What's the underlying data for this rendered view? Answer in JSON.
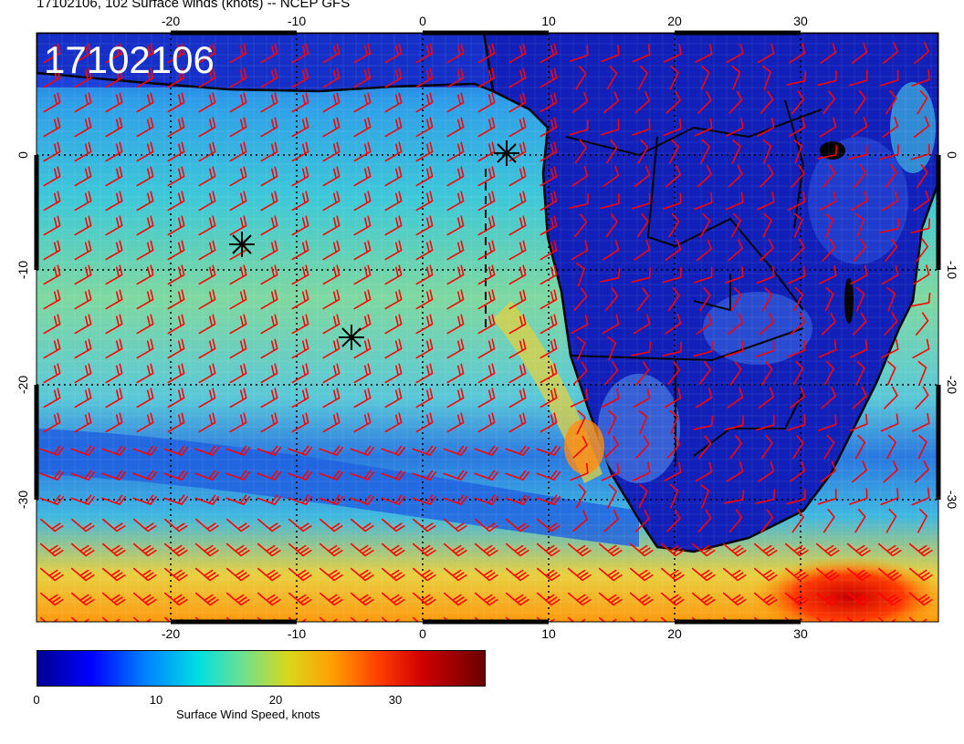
{
  "header": {
    "title": "17102106, 102 Surface winds (knots) -- NCEP GFS"
  },
  "map": {
    "timestamp_label": "17102106",
    "lon_ticks": [
      "-20",
      "-10",
      "0",
      "10",
      "20",
      "30"
    ],
    "lat_ticks": [
      "0",
      "-10",
      "-20",
      "-30"
    ],
    "barb_color": "#ff0000"
  },
  "colorbar": {
    "ticks": [
      "0",
      "10",
      "20",
      "30"
    ],
    "label": "Surface Wind Speed, knots"
  }
}
